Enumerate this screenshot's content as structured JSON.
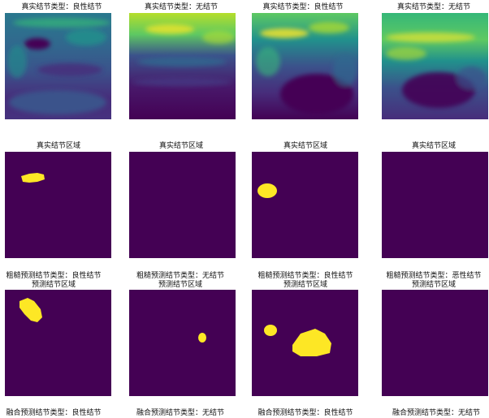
{
  "colors": {
    "mask_background": "#440154",
    "mask_foreground": "#fde725",
    "viridis_palette": [
      "#440154",
      "#3b528b",
      "#21918c",
      "#5ec962",
      "#fde725"
    ]
  },
  "rows": [
    {
      "kind": "ultrasound",
      "panels": [
        {
          "title": "真实结节类型：良性结节"
        },
        {
          "title": "真实结节类型：无结节"
        },
        {
          "title": "真实结节类型：良性结节"
        },
        {
          "title": "真实结节类型：无结节"
        }
      ]
    },
    {
      "kind": "mask",
      "panels": [
        {
          "title": "真实结节区域"
        },
        {
          "title": "真实结节区域"
        },
        {
          "title": "真实结节区域"
        },
        {
          "title": "真实结节区域"
        }
      ]
    },
    {
      "kind": "mask",
      "panels": [
        {
          "title_line1": "粗糙预测结节类型：良性结节",
          "title_line2": "预测结节区域"
        },
        {
          "title_line1": "粗糙预测结节类型：无结节",
          "title_line2": "预测结节区域"
        },
        {
          "title_line1": "粗糙预测结节类型：良性结节",
          "title_line2": "预测结节区域"
        },
        {
          "title_line1": "粗糙预测结节类型：恶性结节",
          "title_line2": "预测结节区域"
        }
      ]
    },
    {
      "kind": "label",
      "panels": [
        {
          "title": "融合预测结节类型：良性结节"
        },
        {
          "title": "融合预测结节类型：无结节"
        },
        {
          "title": "融合预测结节类型：良性结节"
        },
        {
          "title": "融合预测结节类型：无结节"
        }
      ]
    }
  ]
}
